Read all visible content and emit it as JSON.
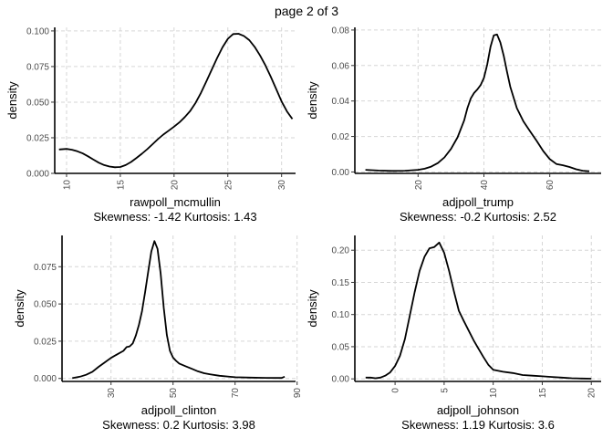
{
  "page_title": "page 2 of 3",
  "chart_data": [
    {
      "type": "line",
      "xlabel": "rawpoll_mcmullin",
      "ylabel": "density",
      "caption": "Skewness: -1.42 Kurtosis: 1.43",
      "xlim": [
        8.9,
        31.3
      ],
      "ylim": [
        0,
        0.1025
      ],
      "xticks": [
        10,
        15,
        20,
        25,
        30
      ],
      "yticks": [
        0.0,
        0.025,
        0.05,
        0.075,
        0.1
      ],
      "ytick_labels": [
        "0.000",
        "0.025",
        "0.050",
        "0.075",
        "0.100"
      ],
      "x": [
        9.3,
        10.0,
        10.5,
        11.0,
        11.5,
        12.0,
        12.5,
        13.0,
        13.5,
        14.0,
        14.5,
        15.0,
        15.5,
        16.0,
        16.5,
        17.0,
        17.5,
        18.0,
        18.5,
        19.0,
        19.5,
        20.0,
        20.5,
        21.0,
        21.5,
        22.0,
        22.5,
        23.0,
        23.5,
        24.0,
        24.5,
        25.0,
        25.5,
        26.0,
        26.5,
        27.0,
        27.5,
        28.0,
        28.5,
        29.0,
        29.5,
        30.0,
        30.5,
        31.0
      ],
      "y": [
        0.0168,
        0.0172,
        0.0166,
        0.0155,
        0.014,
        0.012,
        0.0097,
        0.0075,
        0.0058,
        0.0048,
        0.0043,
        0.0045,
        0.0058,
        0.008,
        0.0108,
        0.0138,
        0.017,
        0.0205,
        0.024,
        0.0272,
        0.03,
        0.0328,
        0.0358,
        0.0395,
        0.0438,
        0.0495,
        0.0565,
        0.0645,
        0.0728,
        0.081,
        0.0885,
        0.0945,
        0.0978,
        0.098,
        0.0965,
        0.0935,
        0.0888,
        0.0828,
        0.0758,
        0.0678,
        0.0592,
        0.0505,
        0.0435,
        0.0382
      ],
      "grid": true
    },
    {
      "type": "line",
      "xlabel": "adjpoll_trump",
      "ylabel": "density",
      "caption": "Skewness: -0.2 Kurtosis: 2.52",
      "xlim": [
        0.8,
        75.6
      ],
      "ylim": [
        -0.0008,
        0.0815
      ],
      "xticks": [
        20,
        40,
        60
      ],
      "yticks": [
        0.0,
        0.02,
        0.04,
        0.06,
        0.08
      ],
      "ytick_labels": [
        "0.00",
        "0.02",
        "0.04",
        "0.06",
        "0.08"
      ],
      "x": [
        4,
        8,
        12,
        16,
        20,
        22,
        24,
        26,
        28,
        30,
        32,
        34,
        35,
        36,
        37,
        38,
        39,
        40,
        41,
        42,
        43,
        44,
        45,
        46,
        47,
        48,
        50,
        52,
        54,
        56,
        58,
        60,
        62,
        64,
        66,
        68,
        70,
        72
      ],
      "y": [
        0.0012,
        0.0008,
        0.0006,
        0.0007,
        0.0012,
        0.0018,
        0.003,
        0.005,
        0.0082,
        0.013,
        0.0195,
        0.029,
        0.036,
        0.0415,
        0.0445,
        0.0465,
        0.049,
        0.053,
        0.0605,
        0.0705,
        0.077,
        0.0775,
        0.073,
        0.0655,
        0.0565,
        0.048,
        0.036,
        0.0285,
        0.023,
        0.0175,
        0.0118,
        0.0072,
        0.0045,
        0.0038,
        0.0028,
        0.0015,
        0.0007,
        0.0004
      ],
      "grid": true
    },
    {
      "type": "line",
      "xlabel": "adjpoll_clinton",
      "ylabel": "density",
      "caption": "Skewness: 0.2 Kurtosis: 3.98",
      "xlim": [
        14.2,
        89.5
      ],
      "ylim": [
        -0.002,
        0.096
      ],
      "xticks": [
        30,
        50,
        70,
        90
      ],
      "yticks": [
        0.0,
        0.025,
        0.05,
        0.075
      ],
      "ytick_labels": [
        "0.000",
        "0.025",
        "0.050",
        "0.075"
      ],
      "x": [
        17.5,
        20,
        22,
        24,
        26,
        28,
        30,
        32,
        34,
        35,
        36,
        37,
        38,
        39,
        40,
        41,
        42,
        43,
        44,
        45,
        46,
        47,
        48,
        49,
        50,
        51,
        52,
        54,
        56,
        58,
        60,
        62,
        65,
        70,
        75,
        80,
        85,
        86
      ],
      "y": [
        0.0002,
        0.0012,
        0.0025,
        0.0045,
        0.0078,
        0.0108,
        0.0138,
        0.0162,
        0.0185,
        0.021,
        0.0215,
        0.0235,
        0.0288,
        0.036,
        0.0452,
        0.058,
        0.0718,
        0.0852,
        0.0922,
        0.087,
        0.0705,
        0.0475,
        0.0292,
        0.0185,
        0.014,
        0.0118,
        0.01,
        0.0082,
        0.0065,
        0.0048,
        0.0035,
        0.0028,
        0.0018,
        0.0008,
        0.0006,
        0.0004,
        0.0003,
        0.0012
      ],
      "grid": true
    },
    {
      "type": "line",
      "xlabel": "adjpoll_johnson",
      "ylabel": "density",
      "caption": "Skewness: 1.19 Kurtosis: 3.6",
      "xlim": [
        -4.1,
        21.0
      ],
      "ylim": [
        -0.004,
        0.223
      ],
      "xticks": [
        0,
        5,
        10,
        15,
        20
      ],
      "yticks": [
        0.0,
        0.05,
        0.1,
        0.15,
        0.2
      ],
      "ytick_labels": [
        "0.00",
        "0.05",
        "0.10",
        "0.15",
        "0.20"
      ],
      "x": [
        -3,
        -2.5,
        -2,
        -1.5,
        -1,
        -0.5,
        0,
        0.5,
        1,
        1.5,
        2,
        2.5,
        3,
        3.5,
        4,
        4.5,
        5,
        5.5,
        6,
        6.5,
        7,
        7.5,
        8,
        8.5,
        9,
        9.5,
        10,
        11,
        12,
        13,
        14,
        15,
        16,
        17,
        18,
        19,
        20
      ],
      "y": [
        0.002,
        0.002,
        0.001,
        0.002,
        0.005,
        0.01,
        0.02,
        0.036,
        0.062,
        0.098,
        0.135,
        0.168,
        0.19,
        0.203,
        0.205,
        0.212,
        0.196,
        0.168,
        0.136,
        0.106,
        0.09,
        0.075,
        0.06,
        0.047,
        0.034,
        0.022,
        0.014,
        0.011,
        0.009,
        0.006,
        0.005,
        0.004,
        0.003,
        0.002,
        0.001,
        0.0005,
        0.0003
      ],
      "grid": true
    }
  ]
}
